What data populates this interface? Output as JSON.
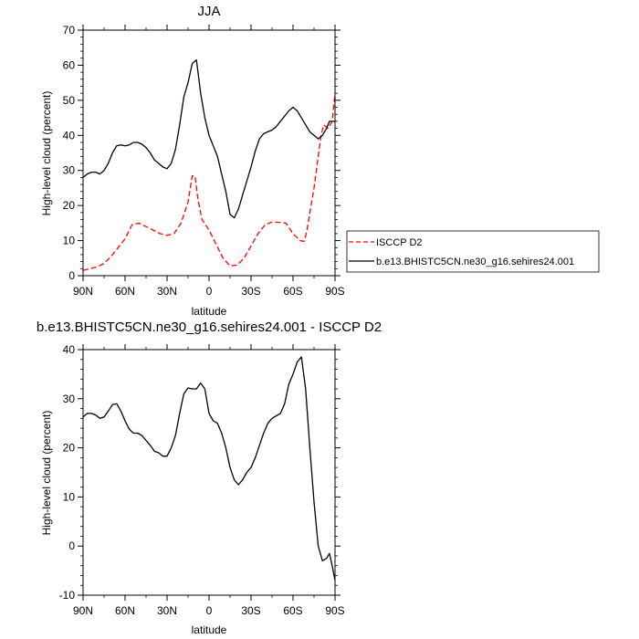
{
  "chart_data": [
    {
      "type": "line",
      "title": "JJA",
      "xlabel": "latitude",
      "ylabel": "High-level cloud (percent)",
      "xlim": [
        90,
        -90
      ],
      "ylim": [
        0,
        70
      ],
      "x_ticks": [
        90,
        60,
        30,
        0,
        -30,
        -60,
        -90
      ],
      "x_tick_labels": [
        "90N",
        "60N",
        "30N",
        "0",
        "30S",
        "60S",
        "90S"
      ],
      "y_ticks": [
        0,
        10,
        20,
        30,
        40,
        50,
        60,
        70
      ],
      "y_tick_labels": [
        "0",
        "10",
        "20",
        "30",
        "40",
        "50",
        "60",
        "70"
      ],
      "legend_position": "right",
      "series": [
        {
          "name": "ISCCP D2",
          "color": "#ff0000",
          "dash": true,
          "x": [
            90,
            85,
            80,
            75,
            70,
            65,
            60,
            55,
            50,
            45,
            40,
            35,
            30,
            25,
            20,
            15,
            12,
            10,
            8,
            5,
            0,
            -5,
            -10,
            -15,
            -20,
            -25,
            -30,
            -35,
            -40,
            -45,
            -50,
            -55,
            -60,
            -65,
            -68,
            -70,
            -75,
            -80,
            -82,
            -85,
            -88,
            -90
          ],
          "y": [
            1.5,
            2,
            2.5,
            3.5,
            5.5,
            8,
            10.5,
            14.5,
            15,
            14,
            13,
            12,
            11.5,
            12,
            15,
            21,
            28.5,
            28.3,
            22,
            16,
            13,
            9,
            5,
            2.8,
            3,
            5,
            8.5,
            12,
            14.5,
            15.3,
            15.2,
            15,
            12,
            10,
            9.8,
            13,
            25,
            40,
            43,
            42,
            44,
            52
          ]
        },
        {
          "name": "b.e13.BHISTC5CN.ne30_g16.sehires24.001",
          "color": "#000000",
          "dash": false,
          "x": [
            90,
            87,
            84,
            81,
            78,
            75,
            72,
            69,
            66,
            63,
            60,
            57,
            54,
            51,
            48,
            45,
            42,
            39,
            36,
            33,
            30,
            27,
            24,
            21,
            18,
            15,
            12,
            9,
            6,
            3,
            0,
            -3,
            -6,
            -9,
            -12,
            -15,
            -18,
            -21,
            -24,
            -27,
            -30,
            -33,
            -36,
            -39,
            -42,
            -45,
            -48,
            -51,
            -54,
            -57,
            -60,
            -63,
            -66,
            -69,
            -72,
            -75,
            -78,
            -81,
            -84,
            -86,
            -88,
            -90
          ],
          "y": [
            28,
            29,
            29.5,
            29.5,
            29,
            30,
            32,
            35,
            37,
            37.3,
            37,
            37.3,
            38,
            38,
            37.5,
            36.5,
            35,
            33,
            32,
            31,
            30.5,
            32,
            36,
            43,
            51,
            55,
            60.5,
            61.5,
            52,
            45,
            40,
            37,
            34,
            29,
            24,
            17.5,
            16.5,
            19,
            23,
            27,
            31,
            35.5,
            39,
            40.5,
            41,
            41.5,
            42.5,
            44,
            45.5,
            47,
            48,
            47,
            45,
            43,
            41,
            40,
            39,
            40,
            42,
            44,
            44,
            44
          ]
        }
      ]
    },
    {
      "type": "line",
      "title": "b.e13.BHISTC5CN.ne30_g16.sehires24.001 - ISCCP D2",
      "xlabel": "latitude",
      "ylabel": "High-level cloud (percent)",
      "xlim": [
        90,
        -90
      ],
      "ylim": [
        -10,
        40
      ],
      "x_ticks": [
        90,
        60,
        30,
        0,
        -30,
        -60,
        -90
      ],
      "x_tick_labels": [
        "90N",
        "60N",
        "30N",
        "0",
        "30S",
        "60S",
        "90S"
      ],
      "y_ticks": [
        -10,
        0,
        10,
        20,
        30,
        40
      ],
      "y_tick_labels": [
        "-10",
        "0",
        "10",
        "20",
        "30",
        "40"
      ],
      "series": [
        {
          "color": "#000000",
          "dash": false,
          "x": [
            90,
            87,
            84,
            81,
            78,
            75,
            72,
            69,
            66,
            63,
            60,
            57,
            54,
            51,
            48,
            45,
            42,
            39,
            36,
            33,
            30,
            27,
            24,
            21,
            18,
            15,
            12,
            9,
            6,
            3,
            0,
            -3,
            -6,
            -9,
            -12,
            -15,
            -18,
            -21,
            -24,
            -27,
            -30,
            -33,
            -36,
            -39,
            -42,
            -45,
            -48,
            -51,
            -54,
            -57,
            -60,
            -63,
            -66,
            -69,
            -72,
            -75,
            -78,
            -81,
            -84,
            -86,
            -88,
            -90
          ],
          "y": [
            26.3,
            27,
            27,
            26.7,
            26,
            26.3,
            27.5,
            28.8,
            29,
            27.5,
            25.5,
            23.8,
            23,
            23,
            22.5,
            21.5,
            20.5,
            19.3,
            19,
            18.3,
            18.3,
            20,
            22.5,
            27,
            31,
            32.2,
            32,
            32,
            33.2,
            32,
            27,
            25.5,
            25,
            23,
            20,
            16,
            13.5,
            12.5,
            13.5,
            15,
            16,
            18,
            20.5,
            23,
            25,
            26,
            26.5,
            27,
            29,
            33,
            35,
            37.5,
            38.5,
            32,
            20,
            9,
            0,
            -3,
            -2.5,
            -1.5,
            -4,
            -7
          ]
        }
      ]
    }
  ]
}
